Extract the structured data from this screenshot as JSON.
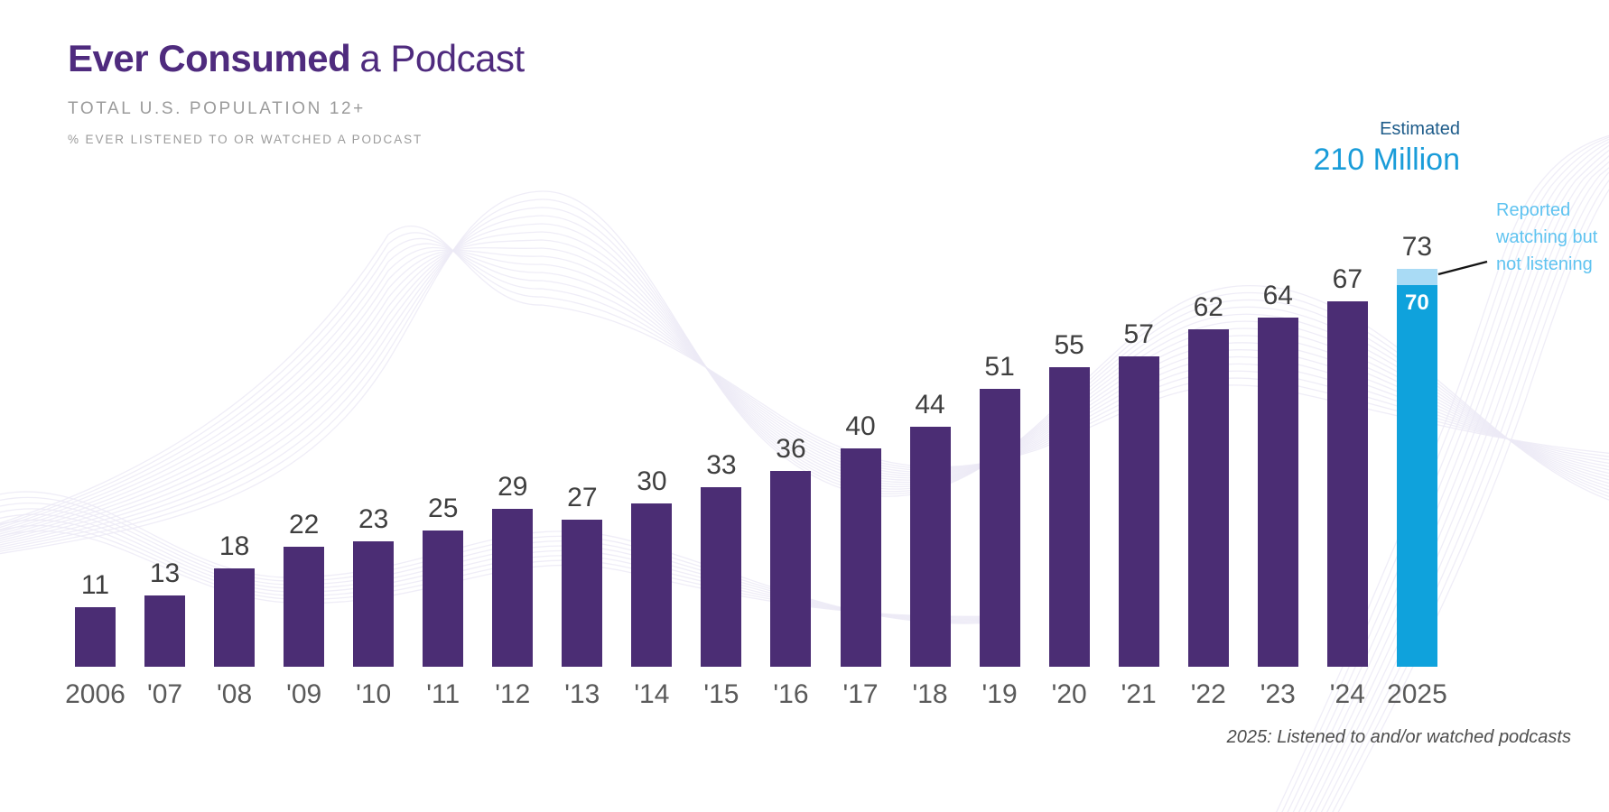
{
  "header": {
    "title_bold": "Ever Consumed",
    "title_regular": "a Podcast",
    "subtitle": "TOTAL U.S. POPULATION 12+",
    "measure_note": "% EVER LISTENED TO OR WATCHED A PODCAST"
  },
  "estimate": {
    "label": "Estimated",
    "value": "210 Million"
  },
  "annotation": {
    "lines": [
      "Reported",
      "watching but",
      "not listening"
    ]
  },
  "footnote": "2025: Listened to and/or watched podcasts",
  "colors": {
    "bar_purple": "#4B2D74",
    "title_purple": "#4F2B7E",
    "bar_blue": "#0FA2DC",
    "bar_light_blue_cap": "#A9DBF5",
    "estimate_label_blue": "#1E5C8A",
    "estimate_value_blue": "#199CD9",
    "annotation_light_blue": "#5FC3F0",
    "value_label_gray": "#3F3F3F",
    "axis_label_gray": "#5A5A5A",
    "subtitle_gray": "#9B9B9B",
    "wave_lavender": "#ECEAF6"
  },
  "chart_data": {
    "type": "bar",
    "title": "Ever Consumed a Podcast",
    "subtitle": "Total U.S. Population 12+",
    "ylabel": "% ever listened to or watched a podcast",
    "categories": [
      "2006",
      "'07",
      "'08",
      "'09",
      "'10",
      "'11",
      "'12",
      "'13",
      "'14",
      "'15",
      "'16",
      "'17",
      "'18",
      "'19",
      "'20",
      "'21",
      "'22",
      "'23",
      "'24",
      "2025"
    ],
    "values": [
      11,
      13,
      18,
      22,
      23,
      25,
      29,
      27,
      30,
      33,
      36,
      40,
      44,
      51,
      55,
      57,
      62,
      64,
      67,
      73
    ],
    "final_bar_2025": {
      "total": 73,
      "inner_label": 70,
      "listened_segment": 70,
      "watched_not_listening_segment": 3,
      "segment_note": "Reported watching but not listening",
      "estimated_reach": "210 Million"
    },
    "ylim": [
      0,
      80
    ],
    "grid": false,
    "value_labels": true,
    "legend": "none",
    "footnote": "2025: Listened to and/or watched podcasts"
  }
}
